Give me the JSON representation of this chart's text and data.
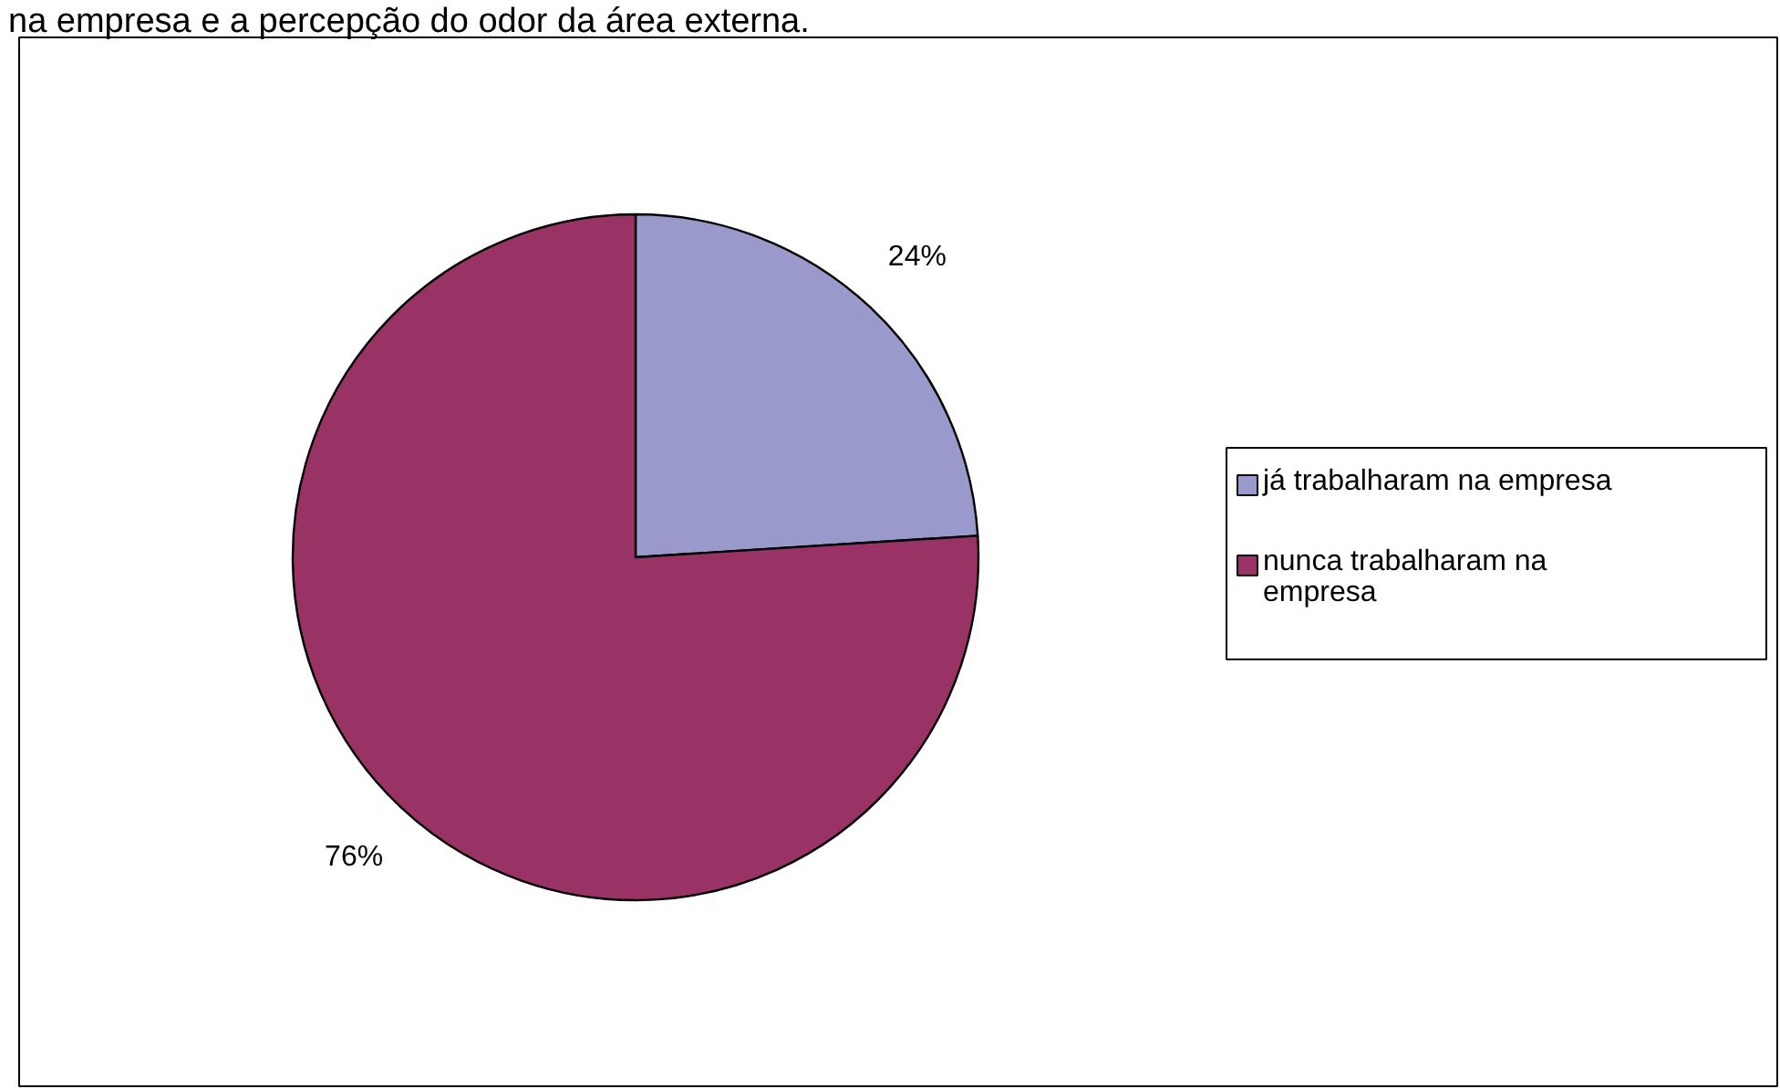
{
  "chart_data": {
    "type": "pie",
    "title": "na empresa e a percepção do odor da área externa.",
    "categories": [
      "já trabalharam na empresa",
      "nunca trabalharam na empresa"
    ],
    "values": [
      24,
      76
    ],
    "colors": [
      "#9999cc",
      "#993366"
    ],
    "value_labels": [
      "24%",
      "76%"
    ],
    "legend": "right"
  }
}
